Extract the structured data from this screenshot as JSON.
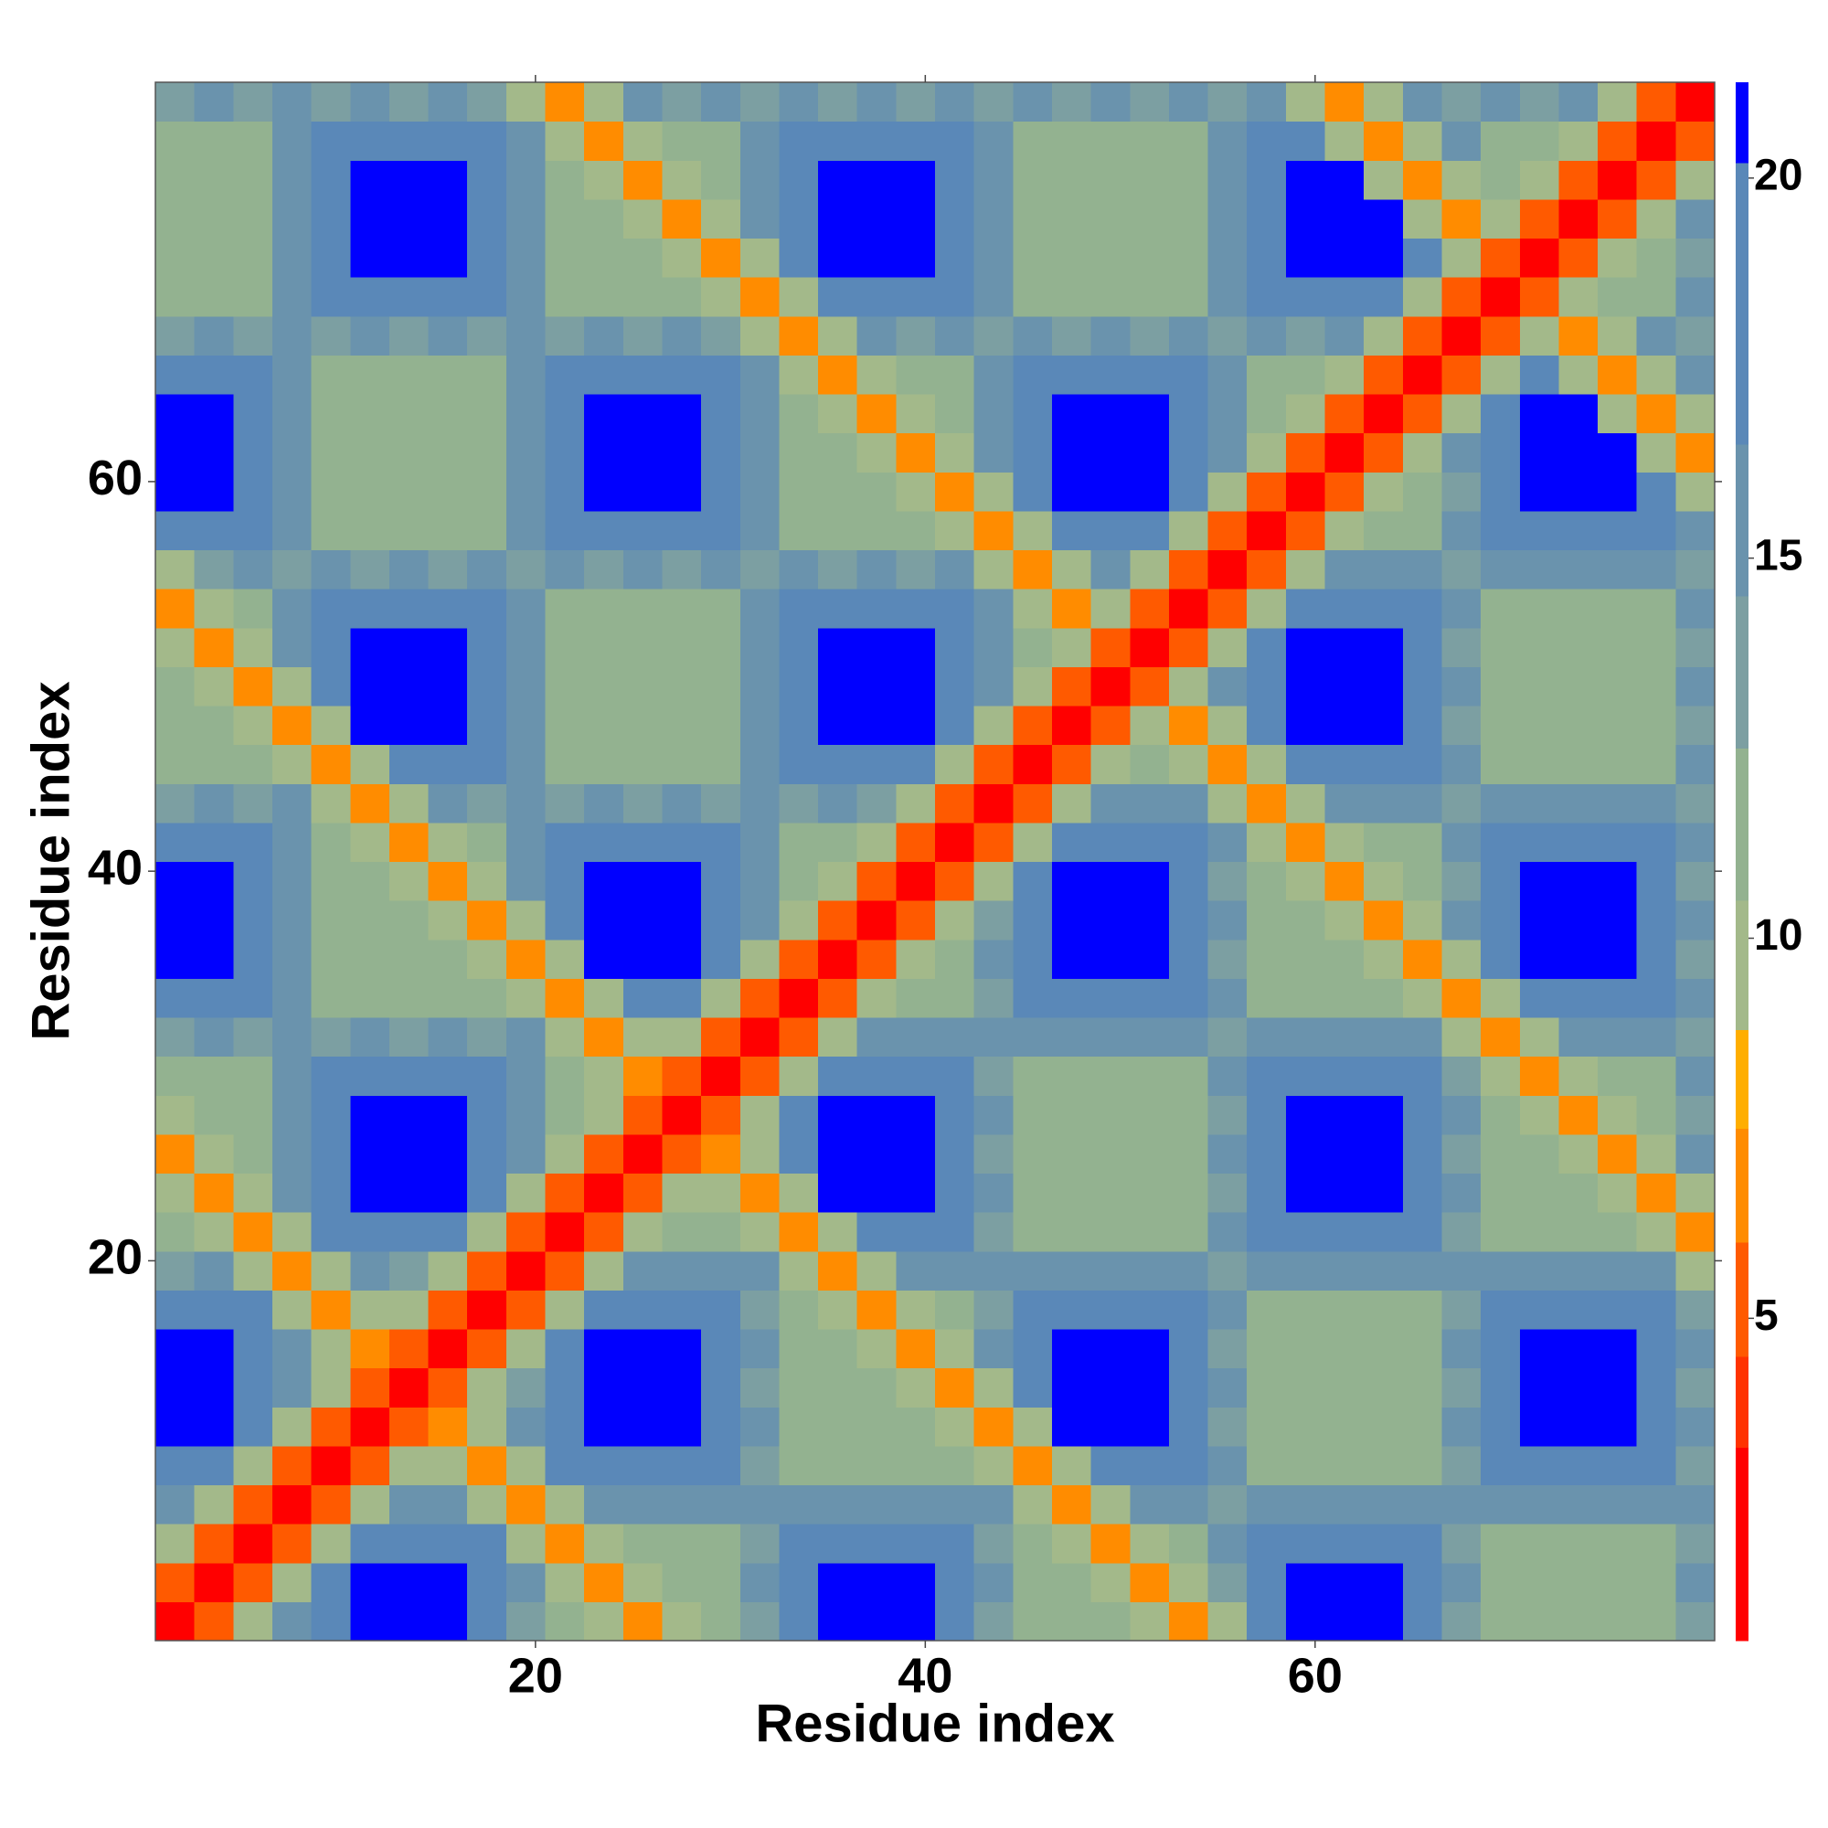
{
  "chart_data": {
    "type": "heatmap",
    "xlabel": "Residue index",
    "ylabel": "Residue index",
    "xlim": [
      0.5,
      80.5
    ],
    "ylim": [
      0.5,
      80.5
    ],
    "xticks": [
      20,
      40,
      60
    ],
    "yticks": [
      20,
      40,
      60
    ],
    "levels": [
      0.76,
      3.3,
      4.5,
      6,
      7.5,
      8.8,
      10.5,
      12.5,
      14.5,
      16.5,
      20.2,
      21.26
    ],
    "colors": [
      "#ff0000",
      "#ff3300",
      "#ff5a00",
      "#ff8c00",
      "#ffae00",
      "#a3b98a",
      "#93b290",
      "#7c9fa2",
      "#6a93ad",
      "#5a88b8",
      "#0000ff"
    ],
    "cticks": [
      5,
      10,
      15,
      20
    ],
    "values": [
      [
        2
      ],
      [
        5,
        2
      ],
      [
        10,
        5,
        2
      ],
      [
        15,
        10,
        5,
        2
      ],
      [
        18,
        18,
        10,
        5,
        2
      ],
      [
        22,
        22,
        18,
        10,
        5,
        2
      ],
      [
        22,
        22,
        18,
        15,
        10,
        5,
        2
      ],
      [
        22,
        22,
        18,
        15,
        9,
        7,
        5,
        2
      ],
      [
        18,
        18,
        18,
        9,
        7,
        9,
        10,
        5,
        2
      ],
      [
        14,
        16,
        9,
        7,
        9,
        16,
        14,
        10,
        5,
        2
      ],
      [
        12,
        9,
        7,
        9,
        18,
        18,
        18,
        18,
        10,
        5,
        2
      ],
      [
        9,
        7,
        9,
        15,
        18,
        22,
        22,
        22,
        18,
        10,
        5,
        2
      ],
      [
        7,
        9,
        12,
        15,
        18,
        22,
        22,
        22,
        18,
        15,
        10,
        5,
        2
      ],
      [
        9,
        12,
        12,
        15,
        18,
        22,
        22,
        22,
        18,
        15,
        12,
        10,
        5,
        2
      ],
      [
        12,
        12,
        12,
        15,
        18,
        18,
        18,
        18,
        18,
        15,
        12,
        9,
        7,
        5,
        2
      ],
      [
        14,
        16,
        14,
        16,
        14,
        16,
        14,
        16,
        14,
        16,
        9,
        7,
        9,
        10,
        5,
        2
      ],
      [
        18,
        18,
        18,
        15,
        12,
        12,
        12,
        12,
        12,
        9,
        7,
        9,
        18,
        18,
        10,
        5,
        2
      ],
      [
        22,
        22,
        18,
        15,
        12,
        12,
        12,
        12,
        9,
        7,
        9,
        22,
        22,
        22,
        18,
        10,
        5,
        2
      ],
      [
        22,
        22,
        18,
        15,
        12,
        12,
        12,
        9,
        7,
        9,
        18,
        22,
        22,
        22,
        18,
        15,
        10,
        5,
        2
      ],
      [
        22,
        22,
        18,
        15,
        12,
        12,
        9,
        7,
        9,
        15,
        18,
        22,
        22,
        22,
        18,
        15,
        12,
        10,
        5,
        2
      ],
      [
        18,
        18,
        18,
        15,
        12,
        9,
        7,
        9,
        12,
        15,
        18,
        18,
        18,
        18,
        18,
        15,
        12,
        12,
        10,
        5,
        2
      ],
      [
        14,
        16,
        14,
        16,
        9,
        7,
        9,
        16,
        14,
        16,
        14,
        16,
        14,
        16,
        14,
        16,
        14,
        16,
        14,
        10,
        5,
        2
      ],
      [
        12,
        12,
        12,
        9,
        7,
        9,
        18,
        18,
        18,
        15,
        12,
        12,
        12,
        12,
        12,
        15,
        18,
        18,
        18,
        18,
        10,
        5,
        2
      ],
      [
        12,
        12,
        9,
        7,
        9,
        22,
        22,
        22,
        18,
        15,
        12,
        12,
        12,
        12,
        12,
        15,
        18,
        22,
        22,
        22,
        18,
        10,
        5,
        2
      ],
      [
        12,
        9,
        7,
        9,
        18,
        22,
        22,
        22,
        18,
        15,
        12,
        12,
        12,
        12,
        12,
        15,
        18,
        22,
        22,
        22,
        18,
        15,
        10,
        5,
        2
      ],
      [
        9,
        7,
        9,
        15,
        18,
        22,
        22,
        22,
        18,
        15,
        12,
        12,
        12,
        12,
        12,
        15,
        18,
        22,
        22,
        22,
        18,
        15,
        12,
        9,
        5,
        2
      ],
      [
        7,
        9,
        12,
        15,
        18,
        18,
        18,
        18,
        18,
        15,
        12,
        12,
        12,
        12,
        12,
        15,
        18,
        18,
        18,
        18,
        18,
        15,
        9,
        7,
        9,
        5,
        2
      ],
      [
        9,
        14,
        16,
        14,
        16,
        14,
        16,
        14,
        16,
        14,
        16,
        14,
        16,
        14,
        16,
        14,
        16,
        14,
        16,
        14,
        16,
        9,
        7,
        9,
        16,
        10,
        5,
        2
      ],
      [
        18,
        18,
        18,
        15,
        12,
        12,
        12,
        12,
        12,
        15,
        18,
        18,
        18,
        18,
        18,
        15,
        12,
        12,
        12,
        12,
        9,
        7,
        9,
        18,
        18,
        18,
        10,
        5,
        2
      ],
      [
        22,
        22,
        18,
        15,
        12,
        12,
        12,
        12,
        12,
        15,
        18,
        22,
        22,
        22,
        18,
        15,
        12,
        12,
        12,
        9,
        7,
        9,
        18,
        22,
        22,
        22,
        18,
        10,
        5,
        2
      ],
      [
        22,
        22,
        18,
        15,
        12,
        12,
        12,
        12,
        12,
        15,
        18,
        22,
        22,
        22,
        18,
        15,
        12,
        12,
        9,
        7,
        9,
        15,
        18,
        22,
        22,
        22,
        18,
        15,
        10,
        5,
        2
      ],
      [
        22,
        22,
        18,
        15,
        12,
        12,
        12,
        12,
        12,
        15,
        18,
        22,
        22,
        22,
        18,
        15,
        12,
        9,
        7,
        9,
        12,
        15,
        18,
        22,
        22,
        22,
        18,
        15,
        12,
        10,
        5,
        2
      ],
      [
        18,
        18,
        18,
        15,
        12,
        12,
        12,
        12,
        12,
        15,
        18,
        18,
        18,
        18,
        18,
        15,
        9,
        7,
        9,
        12,
        12,
        15,
        18,
        18,
        18,
        18,
        18,
        15,
        12,
        12,
        10,
        5,
        2
      ],
      [
        14,
        16,
        14,
        16,
        14,
        16,
        14,
        16,
        14,
        16,
        14,
        16,
        14,
        16,
        14,
        9,
        7,
        9,
        16,
        14,
        16,
        14,
        16,
        14,
        16,
        14,
        16,
        14,
        16,
        14,
        16,
        10,
        5,
        2
      ],
      [
        12,
        12,
        12,
        15,
        18,
        18,
        18,
        18,
        18,
        15,
        12,
        12,
        12,
        12,
        9,
        7,
        9,
        18,
        18,
        18,
        18,
        15,
        12,
        12,
        12,
        12,
        12,
        15,
        18,
        18,
        18,
        18,
        10,
        5,
        2
      ],
      [
        12,
        12,
        12,
        15,
        18,
        22,
        22,
        22,
        18,
        15,
        12,
        12,
        12,
        9,
        7,
        9,
        18,
        22,
        22,
        22,
        18,
        15,
        12,
        12,
        12,
        12,
        12,
        15,
        18,
        22,
        22,
        22,
        18,
        10,
        5,
        2
      ],
      [
        12,
        12,
        12,
        15,
        18,
        22,
        22,
        22,
        18,
        15,
        12,
        12,
        9,
        7,
        9,
        15,
        18,
        22,
        22,
        22,
        18,
        15,
        12,
        12,
        12,
        12,
        12,
        15,
        18,
        22,
        22,
        22,
        9,
        7,
        9,
        5,
        2
      ],
      [
        12,
        12,
        12,
        15,
        18,
        22,
        22,
        22,
        18,
        15,
        12,
        9,
        7,
        9,
        12,
        15,
        18,
        22,
        22,
        22,
        18,
        15,
        12,
        12,
        12,
        12,
        12,
        15,
        18,
        22,
        22,
        9,
        7,
        9,
        12,
        10,
        5,
        2
      ],
      [
        12,
        12,
        12,
        15,
        18,
        18,
        18,
        18,
        18,
        15,
        9,
        7,
        9,
        12,
        12,
        15,
        18,
        18,
        18,
        18,
        18,
        15,
        12,
        12,
        12,
        12,
        12,
        15,
        18,
        18,
        9,
        7,
        9,
        15,
        12,
        12,
        10,
        5,
        2
      ],
      [
        14,
        16,
        14,
        16,
        14,
        16,
        14,
        16,
        14,
        9,
        7,
        9,
        16,
        14,
        16,
        14,
        16,
        14,
        16,
        14,
        16,
        14,
        16,
        14,
        16,
        14,
        16,
        14,
        16,
        9,
        7,
        9,
        16,
        14,
        16,
        14,
        16,
        10,
        5,
        2
      ]
    ]
  }
}
